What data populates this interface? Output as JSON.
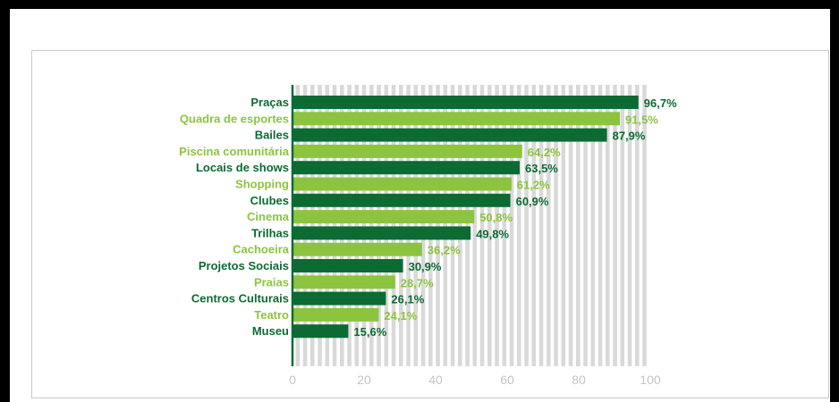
{
  "chart_data": {
    "type": "bar",
    "orientation": "horizontal",
    "categories": [
      "Praças",
      "Quadra de esportes",
      "Bailes",
      "Piscina comunitária",
      "Locais de shows",
      "Shopping",
      "Clubes",
      "Cinema",
      "Trilhas",
      "Cachoeira",
      "Projetos Sociais",
      "Praias",
      "Centros Culturais",
      "Teatro",
      "Museu"
    ],
    "values": [
      96.7,
      91.5,
      87.9,
      64.2,
      63.5,
      61.2,
      60.9,
      50.8,
      49.8,
      36.2,
      30.9,
      28.7,
      26.1,
      24.1,
      15.6
    ],
    "value_labels": [
      "96,7%",
      "91,5%",
      "87,9%",
      "64,2%",
      "63,5%",
      "61,2%",
      "60,9%",
      "50,8%",
      "49,8%",
      "36,2%",
      "30,9%",
      "28,7%",
      "26,1%",
      "24,1%",
      "15,6%"
    ],
    "xlim": [
      0,
      100
    ],
    "xticks": [
      "0",
      "20",
      "40",
      "60",
      "80",
      "100"
    ],
    "grid": true,
    "title": "",
    "xlabel": "",
    "ylabel": ""
  },
  "colors": {
    "dark_green": "#0b6b33",
    "light_green": "#8cc43f",
    "grid": "#d9d9d9",
    "axis": "#0b6b33",
    "tick": "#c4c4c4"
  }
}
